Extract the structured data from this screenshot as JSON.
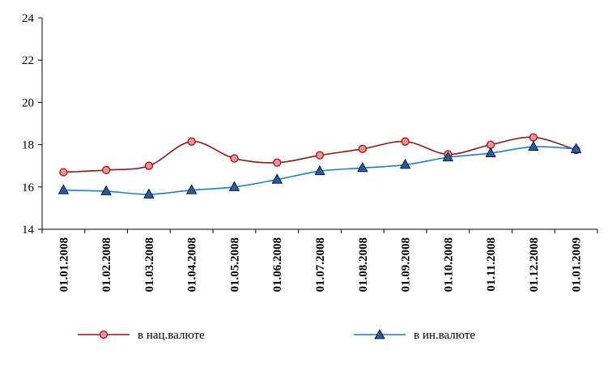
{
  "chart_data": {
    "type": "line",
    "categories": [
      "01.01.2008",
      "01.02.2008",
      "01.03.2008",
      "01.04.2008",
      "01.05.2008",
      "01.06.2008",
      "01.07.2008",
      "01.08.2008",
      "01.09.2008",
      "01.10.2008",
      "01.11.2008",
      "01.12.2008",
      "01.01.2009"
    ],
    "series": [
      {
        "name": "в нац.валюте",
        "color": "#8b1a1a",
        "marker": "circle",
        "marker_fill": "#ff9090",
        "values": [
          16.7,
          16.8,
          17.0,
          18.15,
          17.35,
          17.15,
          17.5,
          17.8,
          18.15,
          17.55,
          18.0,
          18.35,
          17.75
        ]
      },
      {
        "name": "в ин.валюте",
        "color": "#1e7fc2",
        "marker": "triangle",
        "marker_fill": "#1f5fa8",
        "values": [
          15.85,
          15.8,
          15.65,
          15.85,
          16.0,
          16.35,
          16.75,
          16.9,
          17.05,
          17.4,
          17.6,
          17.9,
          17.8
        ]
      }
    ],
    "yticks": [
      "14",
      "16",
      "18",
      "20",
      "22",
      "24"
    ],
    "ylim": [
      14,
      24
    ],
    "title": "",
    "xlabel": "",
    "ylabel": "",
    "legend_position": "bottom",
    "grid": false
  }
}
